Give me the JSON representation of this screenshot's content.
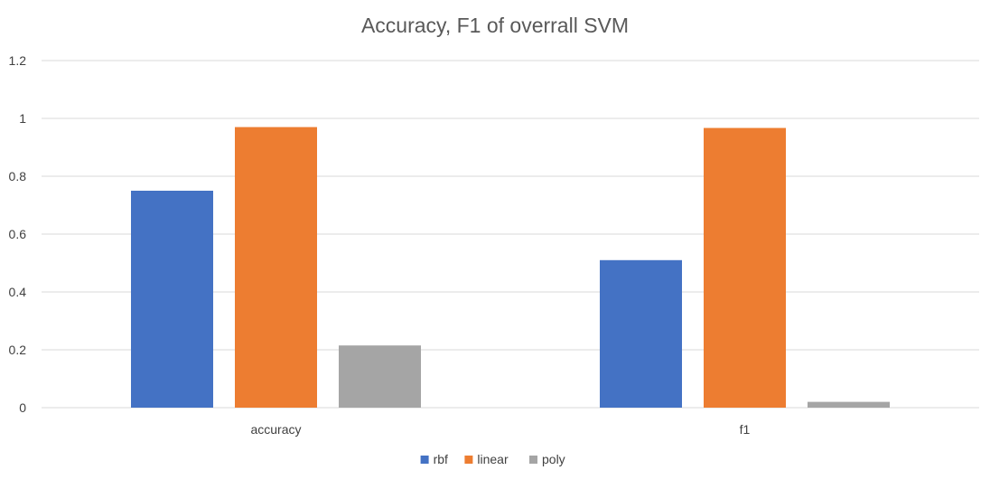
{
  "chart_data": {
    "type": "bar",
    "title": "Accuracy, F1 of overrall SVM",
    "categories": [
      "accuracy",
      "f1"
    ],
    "series": [
      {
        "name": "rbf",
        "color": "#4472C4",
        "values": [
          0.75,
          0.51
        ]
      },
      {
        "name": "linear",
        "color": "#ED7D31",
        "values": [
          0.97,
          0.967
        ]
      },
      {
        "name": "poly",
        "color": "#A5A5A5",
        "values": [
          0.215,
          0.02
        ]
      }
    ],
    "ylim": [
      0,
      1.2
    ],
    "yticks": [
      "0",
      "0.2",
      "0.4",
      "0.6",
      "0.8",
      "1",
      "1.2"
    ],
    "grid": true,
    "legend_position": "bottom"
  }
}
